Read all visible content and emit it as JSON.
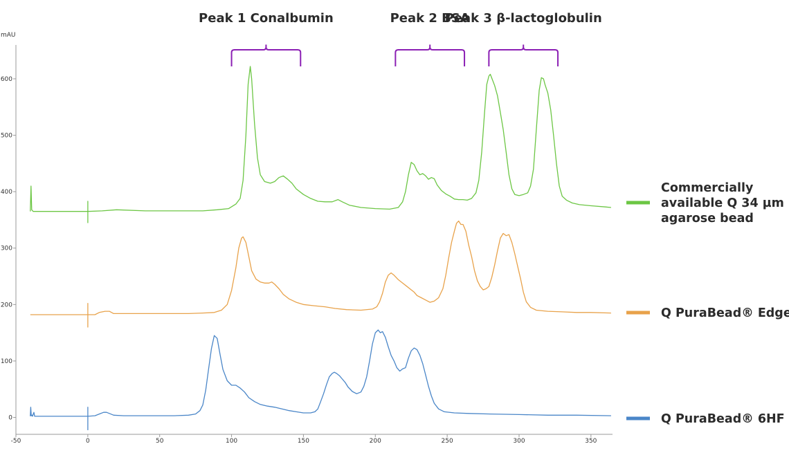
{
  "chart_data": {
    "type": "line",
    "ylabel": "mAU",
    "xlim": [
      -50,
      365
    ],
    "ylim": [
      -30,
      660
    ],
    "x_ticks": [
      -50,
      0,
      50,
      100,
      150,
      200,
      250,
      300,
      350
    ],
    "y_ticks": [
      0,
      100,
      200,
      300,
      400,
      500,
      600
    ],
    "bracket_color": "#8b1fb4",
    "peaks": [
      {
        "label": "Peak 1 Conalbumin",
        "x_range": [
          100,
          148
        ]
      },
      {
        "label": "Peak 2 BSA",
        "x_range": [
          214,
          262
        ]
      },
      {
        "label": "Peak 3 β-lactoglobulin",
        "x_range": [
          279,
          327
        ]
      }
    ],
    "series": [
      {
        "name": [
          "Commercially",
          "available Q 34 µm",
          "agarose bead"
        ],
        "color": "#6cc644",
        "points": [
          [
            -40,
            365
          ],
          [
            -39.5,
            410
          ],
          [
            -39,
            368
          ],
          [
            -38,
            365
          ],
          [
            -30,
            365
          ],
          [
            -10,
            365
          ],
          [
            0,
            365
          ],
          [
            0,
            383
          ],
          [
            0,
            365
          ],
          [
            0,
            345
          ],
          [
            0,
            365
          ],
          [
            10,
            366
          ],
          [
            20,
            368
          ],
          [
            40,
            366
          ],
          [
            60,
            366
          ],
          [
            80,
            366
          ],
          [
            90,
            368
          ],
          [
            98,
            370
          ],
          [
            103,
            378
          ],
          [
            106,
            388
          ],
          [
            108,
            420
          ],
          [
            110,
            500
          ],
          [
            111.5,
            590
          ],
          [
            113,
            622
          ],
          [
            114,
            600
          ],
          [
            116,
            520
          ],
          [
            118,
            460
          ],
          [
            120,
            430
          ],
          [
            123,
            418
          ],
          [
            127,
            415
          ],
          [
            130,
            418
          ],
          [
            133,
            425
          ],
          [
            136,
            428
          ],
          [
            139,
            422
          ],
          [
            142,
            415
          ],
          [
            145,
            405
          ],
          [
            150,
            395
          ],
          [
            155,
            388
          ],
          [
            160,
            383
          ],
          [
            165,
            382
          ],
          [
            170,
            382
          ],
          [
            174,
            386
          ],
          [
            177,
            382
          ],
          [
            182,
            376
          ],
          [
            190,
            372
          ],
          [
            200,
            370
          ],
          [
            210,
            369
          ],
          [
            216,
            372
          ],
          [
            219,
            382
          ],
          [
            221,
            400
          ],
          [
            223,
            430
          ],
          [
            225,
            452
          ],
          [
            227,
            448
          ],
          [
            229,
            437
          ],
          [
            231,
            430
          ],
          [
            233,
            432
          ],
          [
            235,
            428
          ],
          [
            237,
            422
          ],
          [
            239,
            425
          ],
          [
            241,
            423
          ],
          [
            243,
            412
          ],
          [
            246,
            402
          ],
          [
            249,
            396
          ],
          [
            252,
            392
          ],
          [
            255,
            387
          ],
          [
            258,
            386
          ],
          [
            261,
            386
          ],
          [
            264,
            385
          ],
          [
            267,
            388
          ],
          [
            270,
            398
          ],
          [
            272,
            420
          ],
          [
            274,
            470
          ],
          [
            276,
            540
          ],
          [
            277.5,
            590
          ],
          [
            279,
            605
          ],
          [
            280,
            608
          ],
          [
            281.5,
            598
          ],
          [
            283,
            588
          ],
          [
            285,
            570
          ],
          [
            287,
            540
          ],
          [
            289,
            510
          ],
          [
            291,
            470
          ],
          [
            293,
            430
          ],
          [
            295,
            405
          ],
          [
            297,
            395
          ],
          [
            300,
            393
          ],
          [
            303,
            395
          ],
          [
            306,
            398
          ],
          [
            308,
            410
          ],
          [
            310,
            440
          ],
          [
            312,
            510
          ],
          [
            314,
            580
          ],
          [
            315.5,
            602
          ],
          [
            317,
            600
          ],
          [
            318,
            590
          ],
          [
            320,
            575
          ],
          [
            322,
            545
          ],
          [
            324,
            500
          ],
          [
            326,
            450
          ],
          [
            328,
            410
          ],
          [
            330,
            392
          ],
          [
            333,
            385
          ],
          [
            337,
            380
          ],
          [
            342,
            377
          ],
          [
            350,
            375
          ],
          [
            360,
            373
          ],
          [
            364,
            372
          ]
        ]
      },
      {
        "name": "Q PuraBead® Edge",
        "color": "#e8a24a",
        "points": [
          [
            -40,
            182
          ],
          [
            -30,
            182
          ],
          [
            -10,
            182
          ],
          [
            0,
            182
          ],
          [
            0,
            202
          ],
          [
            0,
            182
          ],
          [
            0,
            160
          ],
          [
            0,
            182
          ],
          [
            5,
            182
          ],
          [
            8,
            186
          ],
          [
            12,
            188
          ],
          [
            15,
            188
          ],
          [
            18,
            184
          ],
          [
            25,
            184
          ],
          [
            50,
            184
          ],
          [
            70,
            184
          ],
          [
            80,
            185
          ],
          [
            88,
            186
          ],
          [
            93,
            190
          ],
          [
            97,
            200
          ],
          [
            100,
            225
          ],
          [
            103,
            265
          ],
          [
            105,
            300
          ],
          [
            107,
            318
          ],
          [
            108,
            320
          ],
          [
            110,
            310
          ],
          [
            112,
            285
          ],
          [
            114,
            260
          ],
          [
            117,
            245
          ],
          [
            120,
            240
          ],
          [
            123,
            238
          ],
          [
            126,
            238
          ],
          [
            128,
            240
          ],
          [
            130,
            236
          ],
          [
            133,
            228
          ],
          [
            136,
            218
          ],
          [
            140,
            210
          ],
          [
            145,
            204
          ],
          [
            150,
            200
          ],
          [
            157,
            198
          ],
          [
            165,
            196
          ],
          [
            172,
            193
          ],
          [
            180,
            191
          ],
          [
            190,
            190
          ],
          [
            198,
            192
          ],
          [
            201,
            196
          ],
          [
            203,
            205
          ],
          [
            205,
            220
          ],
          [
            207,
            240
          ],
          [
            209,
            252
          ],
          [
            211,
            256
          ],
          [
            213,
            252
          ],
          [
            216,
            244
          ],
          [
            219,
            238
          ],
          [
            222,
            232
          ],
          [
            225,
            226
          ],
          [
            227,
            222
          ],
          [
            229,
            216
          ],
          [
            232,
            212
          ],
          [
            235,
            208
          ],
          [
            238,
            204
          ],
          [
            241,
            206
          ],
          [
            244,
            212
          ],
          [
            247,
            228
          ],
          [
            249,
            252
          ],
          [
            251,
            282
          ],
          [
            253,
            310
          ],
          [
            255,
            330
          ],
          [
            256.5,
            344
          ],
          [
            258,
            348
          ],
          [
            259.5,
            342
          ],
          [
            261,
            342
          ],
          [
            263,
            330
          ],
          [
            265,
            305
          ],
          [
            267,
            285
          ],
          [
            269,
            260
          ],
          [
            271,
            242
          ],
          [
            273,
            232
          ],
          [
            275,
            226
          ],
          [
            277,
            228
          ],
          [
            279,
            232
          ],
          [
            281,
            248
          ],
          [
            283,
            270
          ],
          [
            285,
            295
          ],
          [
            287,
            318
          ],
          [
            289,
            326
          ],
          [
            291,
            322
          ],
          [
            293,
            324
          ],
          [
            295,
            310
          ],
          [
            297,
            290
          ],
          [
            299,
            268
          ],
          [
            301,
            246
          ],
          [
            303,
            222
          ],
          [
            305,
            205
          ],
          [
            308,
            195
          ],
          [
            312,
            190
          ],
          [
            320,
            188
          ],
          [
            330,
            187
          ],
          [
            340,
            186
          ],
          [
            350,
            186
          ],
          [
            364,
            185
          ]
        ]
      },
      {
        "name": "Q PuraBead® 6HF",
        "color": "#4a86c8",
        "points": [
          [
            -40,
            2
          ],
          [
            -39.7,
            18
          ],
          [
            -39.3,
            3
          ],
          [
            -38.8,
            4
          ],
          [
            -38.5,
            2
          ],
          [
            -37.5,
            9
          ],
          [
            -37,
            2
          ],
          [
            -35,
            2
          ],
          [
            -20,
            2
          ],
          [
            -10,
            2
          ],
          [
            0,
            2
          ],
          [
            0,
            18
          ],
          [
            0,
            2
          ],
          [
            0,
            -22
          ],
          [
            0,
            2
          ],
          [
            5,
            3
          ],
          [
            8,
            6
          ],
          [
            11,
            9
          ],
          [
            13,
            9
          ],
          [
            15,
            7
          ],
          [
            18,
            4
          ],
          [
            25,
            3
          ],
          [
            40,
            3
          ],
          [
            60,
            3
          ],
          [
            70,
            4
          ],
          [
            75,
            6
          ],
          [
            78,
            12
          ],
          [
            80,
            22
          ],
          [
            82,
            48
          ],
          [
            84,
            85
          ],
          [
            86,
            122
          ],
          [
            88,
            145
          ],
          [
            90,
            140
          ],
          [
            92,
            112
          ],
          [
            94,
            85
          ],
          [
            97,
            65
          ],
          [
            100,
            57
          ],
          [
            103,
            57
          ],
          [
            106,
            52
          ],
          [
            109,
            45
          ],
          [
            112,
            35
          ],
          [
            116,
            28
          ],
          [
            120,
            23
          ],
          [
            125,
            20
          ],
          [
            130,
            18
          ],
          [
            135,
            15
          ],
          [
            140,
            12
          ],
          [
            145,
            10
          ],
          [
            150,
            8
          ],
          [
            155,
            8
          ],
          [
            158,
            10
          ],
          [
            160,
            15
          ],
          [
            162,
            28
          ],
          [
            164,
            42
          ],
          [
            166,
            58
          ],
          [
            168,
            72
          ],
          [
            170,
            78
          ],
          [
            171.5,
            80
          ],
          [
            173,
            78
          ],
          [
            175,
            74
          ],
          [
            177,
            68
          ],
          [
            179,
            62
          ],
          [
            181,
            54
          ],
          [
            184,
            46
          ],
          [
            187,
            42
          ],
          [
            190,
            45
          ],
          [
            192,
            55
          ],
          [
            194,
            72
          ],
          [
            196,
            100
          ],
          [
            198,
            130
          ],
          [
            200,
            150
          ],
          [
            202,
            155
          ],
          [
            203.5,
            150
          ],
          [
            205,
            152
          ],
          [
            207,
            142
          ],
          [
            209,
            125
          ],
          [
            211,
            110
          ],
          [
            213,
            100
          ],
          [
            215,
            88
          ],
          [
            217,
            82
          ],
          [
            219,
            86
          ],
          [
            221,
            88
          ],
          [
            223,
            105
          ],
          [
            225,
            118
          ],
          [
            227,
            123
          ],
          [
            229,
            120
          ],
          [
            231,
            110
          ],
          [
            233,
            95
          ],
          [
            235,
            75
          ],
          [
            237,
            55
          ],
          [
            239,
            38
          ],
          [
            241,
            25
          ],
          [
            244,
            15
          ],
          [
            248,
            10
          ],
          [
            255,
            8
          ],
          [
            265,
            7
          ],
          [
            280,
            6
          ],
          [
            300,
            5
          ],
          [
            320,
            4
          ],
          [
            340,
            4
          ],
          [
            364,
            3
          ]
        ]
      }
    ]
  }
}
